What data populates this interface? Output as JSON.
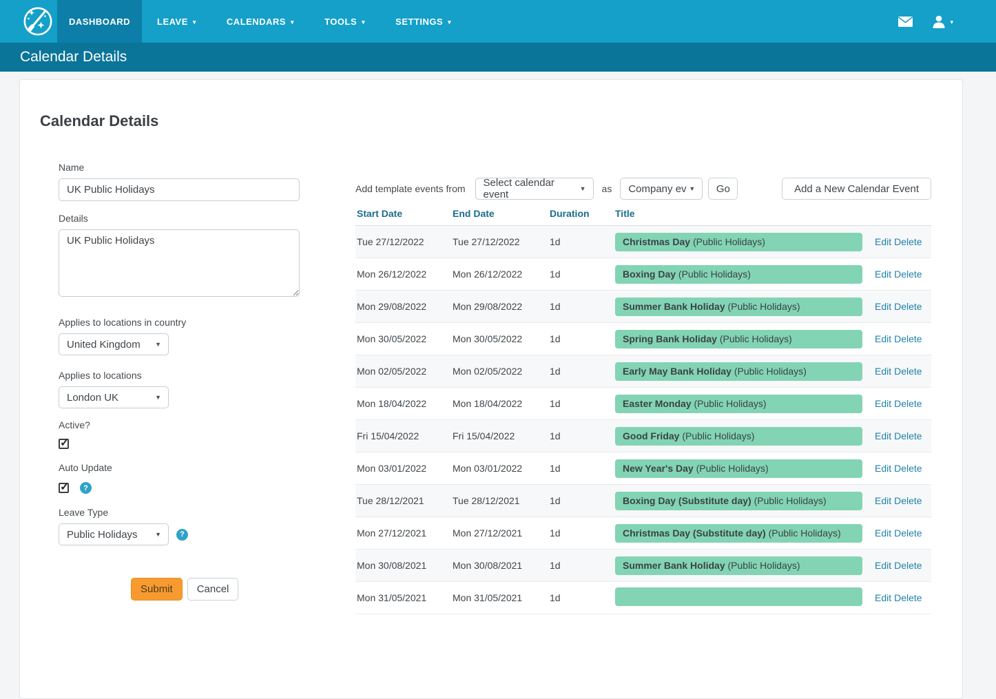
{
  "icons": {
    "nav_caret": "▾",
    "select_caret": "▼",
    "check": "✓",
    "help": "?"
  },
  "colors": {
    "nav_bg": "#14a0c8",
    "nav_active_bg": "#0d7ea7",
    "subheader_bg": "#0b7499",
    "badge_bg": "#82d4b4",
    "submit_bg": "#f79b30",
    "link": "#2080aa",
    "table_header_text": "#1a6c8c"
  },
  "nav": {
    "items": [
      {
        "label": "DASHBOARD",
        "active": true,
        "caret": false
      },
      {
        "label": "LEAVE",
        "active": false,
        "caret": true
      },
      {
        "label": "CALENDARS",
        "active": false,
        "caret": true
      },
      {
        "label": "TOOLS",
        "active": false,
        "caret": true
      },
      {
        "label": "SETTINGS",
        "active": false,
        "caret": true
      }
    ]
  },
  "page_header": {
    "title": "Calendar Details"
  },
  "form": {
    "heading": "Calendar Details",
    "name": {
      "label": "Name",
      "value": "UK Public Holidays"
    },
    "details": {
      "label": "Details",
      "value": "UK Public Holidays"
    },
    "country": {
      "label": "Applies to locations in country",
      "value": "United Kingdom"
    },
    "locations": {
      "label": "Applies to locations",
      "value": "London UK"
    },
    "active": {
      "label": "Active?",
      "checked": true
    },
    "auto_update": {
      "label": "Auto Update",
      "checked": true
    },
    "leave_type": {
      "label": "Leave Type",
      "value": "Public Holidays"
    },
    "submit_label": "Submit",
    "cancel_label": "Cancel"
  },
  "events": {
    "add_template_label": "Add template events from",
    "template_select_value": "Select calendar event",
    "as_label": "as",
    "type_select_value": "Company ev",
    "go_label": "Go",
    "add_new_label": "Add a New Calendar Event",
    "columns": [
      "Start Date",
      "End Date",
      "Duration",
      "Title"
    ],
    "edit_label": "Edit",
    "delete_label": "Delete",
    "rows": [
      {
        "start": "Tue 27/12/2022",
        "end": "Tue 27/12/2022",
        "duration": "1d",
        "title": "Christmas Day",
        "category": "(Public Holidays)"
      },
      {
        "start": "Mon 26/12/2022",
        "end": "Mon 26/12/2022",
        "duration": "1d",
        "title": "Boxing Day",
        "category": "(Public Holidays)"
      },
      {
        "start": "Mon 29/08/2022",
        "end": "Mon 29/08/2022",
        "duration": "1d",
        "title": "Summer Bank Holiday",
        "category": "(Public Holidays)"
      },
      {
        "start": "Mon 30/05/2022",
        "end": "Mon 30/05/2022",
        "duration": "1d",
        "title": "Spring Bank Holiday",
        "category": "(Public Holidays)"
      },
      {
        "start": "Mon 02/05/2022",
        "end": "Mon 02/05/2022",
        "duration": "1d",
        "title": "Early May Bank Holiday",
        "category": "(Public Holidays)"
      },
      {
        "start": "Mon 18/04/2022",
        "end": "Mon 18/04/2022",
        "duration": "1d",
        "title": "Easter Monday",
        "category": "(Public Holidays)"
      },
      {
        "start": "Fri 15/04/2022",
        "end": "Fri 15/04/2022",
        "duration": "1d",
        "title": "Good Friday",
        "category": "(Public Holidays)"
      },
      {
        "start": "Mon 03/01/2022",
        "end": "Mon 03/01/2022",
        "duration": "1d",
        "title": "New Year's Day",
        "category": "(Public Holidays)"
      },
      {
        "start": "Tue 28/12/2021",
        "end": "Tue 28/12/2021",
        "duration": "1d",
        "title": "Boxing Day (Substitute day)",
        "category": "(Public Holidays)"
      },
      {
        "start": "Mon 27/12/2021",
        "end": "Mon 27/12/2021",
        "duration": "1d",
        "title": "Christmas Day (Substitute day)",
        "category": "(Public Holidays)"
      },
      {
        "start": "Mon 30/08/2021",
        "end": "Mon 30/08/2021",
        "duration": "1d",
        "title": "Summer Bank Holiday",
        "category": "(Public Holidays)"
      },
      {
        "start": "Mon 31/05/2021",
        "end": "Mon 31/05/2021",
        "duration": "1d",
        "title": "",
        "category": ""
      }
    ]
  }
}
